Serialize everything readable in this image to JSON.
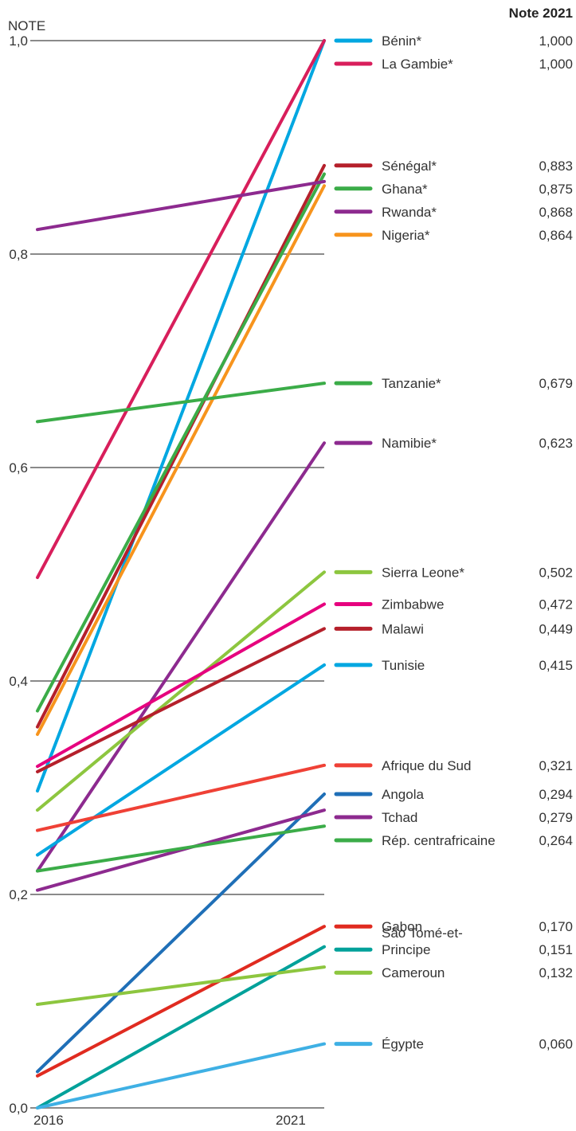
{
  "chart_data": {
    "type": "line",
    "title": "",
    "ylabel": "NOTE",
    "value_header": "Note 2021",
    "x": [
      "2016",
      "2021"
    ],
    "ylim": [
      0,
      1
    ],
    "yticks": [
      "0,0",
      "0,2",
      "0,4",
      "0,6",
      "0,8",
      "1,0"
    ],
    "grid": true,
    "series": [
      {
        "name": "Bénin*",
        "label_lines": [
          "Bénin*"
        ],
        "value_label": "1,000",
        "values": [
          0.297,
          1.0
        ],
        "color": "#00a7e1"
      },
      {
        "name": "La Gambie*",
        "label_lines": [
          "La Gambie*"
        ],
        "value_label": "1,000",
        "values": [
          0.497,
          1.0
        ],
        "color": "#d81e5b"
      },
      {
        "name": "Sénégal*",
        "label_lines": [
          "Sénégal*"
        ],
        "value_label": "0,883",
        "values": [
          0.357,
          0.883
        ],
        "color": "#b5202b"
      },
      {
        "name": "Ghana*",
        "label_lines": [
          "Ghana*"
        ],
        "value_label": "0,875",
        "values": [
          0.372,
          0.875
        ],
        "color": "#3bac48"
      },
      {
        "name": "Rwanda*",
        "label_lines": [
          "Rwanda*"
        ],
        "value_label": "0,868",
        "values": [
          0.823,
          0.868
        ],
        "color": "#8d2a8f"
      },
      {
        "name": "Nigeria*",
        "label_lines": [
          "Nigeria*"
        ],
        "value_label": "0,864",
        "values": [
          0.35,
          0.864
        ],
        "color": "#f7941d"
      },
      {
        "name": "Tanzanie*",
        "label_lines": [
          "Tanzanie*"
        ],
        "value_label": "0,679",
        "values": [
          0.643,
          0.679
        ],
        "color": "#3bac48"
      },
      {
        "name": "Namibie*",
        "label_lines": [
          "Namibie*"
        ],
        "value_label": "0,623",
        "values": [
          0.222,
          0.623
        ],
        "color": "#8d2a8f"
      },
      {
        "name": "Sierra Leone*",
        "label_lines": [
          "Sierra Leone*"
        ],
        "value_label": "0,502",
        "values": [
          0.279,
          0.502
        ],
        "color": "#8dc63f"
      },
      {
        "name": "Zimbabwe",
        "label_lines": [
          "Zimbabwe"
        ],
        "value_label": "0,472",
        "values": [
          0.32,
          0.472
        ],
        "color": "#e6007e"
      },
      {
        "name": "Malawi",
        "label_lines": [
          "Malawi"
        ],
        "value_label": "0,449",
        "values": [
          0.315,
          0.449
        ],
        "color": "#b5202b"
      },
      {
        "name": "Tunisie",
        "label_lines": [
          "Tunisie"
        ],
        "value_label": "0,415",
        "values": [
          0.237,
          0.415
        ],
        "color": "#00a7e1"
      },
      {
        "name": "Afrique du Sud",
        "label_lines": [
          "Afrique du Sud"
        ],
        "value_label": "0,321",
        "values": [
          0.26,
          0.321
        ],
        "color": "#ef4136"
      },
      {
        "name": "Angola",
        "label_lines": [
          "Angola"
        ],
        "value_label": "0,294",
        "values": [
          0.034,
          0.294
        ],
        "color": "#1f6fb7"
      },
      {
        "name": "Tchad",
        "label_lines": [
          "Tchad"
        ],
        "value_label": "0,279",
        "values": [
          0.204,
          0.279
        ],
        "color": "#8d2a8f"
      },
      {
        "name": "Rép. centrafricaine",
        "label_lines": [
          "Rép. centrafricaine"
        ],
        "value_label": "0,264",
        "values": [
          0.222,
          0.264
        ],
        "color": "#3bac48"
      },
      {
        "name": "Gabon",
        "label_lines": [
          "Gabon"
        ],
        "value_label": "0,170",
        "values": [
          0.03,
          0.17
        ],
        "color": "#e02b20"
      },
      {
        "name": "São Tomé-et-Principe",
        "label_lines": [
          "São Tomé-et-",
          "Principe"
        ],
        "value_label": "0,151",
        "values": [
          0.0,
          0.151
        ],
        "color": "#00a19a"
      },
      {
        "name": "Cameroun",
        "label_lines": [
          "Cameroun"
        ],
        "value_label": "0,132",
        "values": [
          0.097,
          0.132
        ],
        "color": "#8dc63f"
      },
      {
        "name": "Égypte",
        "label_lines": [
          "Égypte"
        ],
        "value_label": "0,060",
        "values": [
          0.0,
          0.06
        ],
        "color": "#3fb0e4"
      }
    ]
  }
}
